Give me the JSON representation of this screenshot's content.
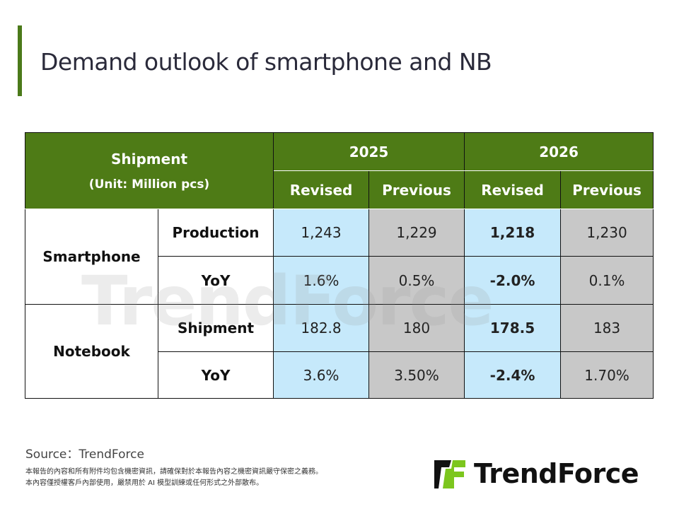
{
  "title": "Demand outlook of smartphone and NB",
  "table": {
    "header_label": "Shipment",
    "header_unit": "(Unit: Million pcs)",
    "years": [
      "2025",
      "2026"
    ],
    "subcols": [
      "Revised",
      "Previous",
      "Revised",
      "Previous"
    ],
    "groups": [
      {
        "name": "Smartphone",
        "rows": [
          {
            "metric": "Production",
            "values": [
              "1,243",
              "1,229",
              "1,218",
              "1,230"
            ]
          },
          {
            "metric": "YoY",
            "values": [
              "1.6%",
              "0.5%",
              "-2.0%",
              "0.1%"
            ]
          }
        ]
      },
      {
        "name": "Notebook",
        "rows": [
          {
            "metric": "Shipment",
            "values": [
              "182.8",
              "180",
              "178.5",
              "183"
            ]
          },
          {
            "metric": "YoY",
            "values": [
              "3.6%",
              "3.50%",
              "-2.4%",
              "1.70%"
            ]
          }
        ]
      }
    ]
  },
  "watermark": "TrendForce",
  "source": "Source：TrendForce",
  "disclaimer": [
    "本報告的內容和所有附件均包含機密資訊，請確保對於本報告內容之機密資訊嚴守保密之義務。",
    "本內容僅授權客戶內部使用，嚴禁用於 AI 模型訓練或任何形式之外部散布。"
  ],
  "logo_text": "TrendForce",
  "colors": {
    "accent": "#4e7b16",
    "revised_bg": "#c6e9fb",
    "previous_bg": "#c8c8c8",
    "logo_green": "#7cc61e"
  }
}
